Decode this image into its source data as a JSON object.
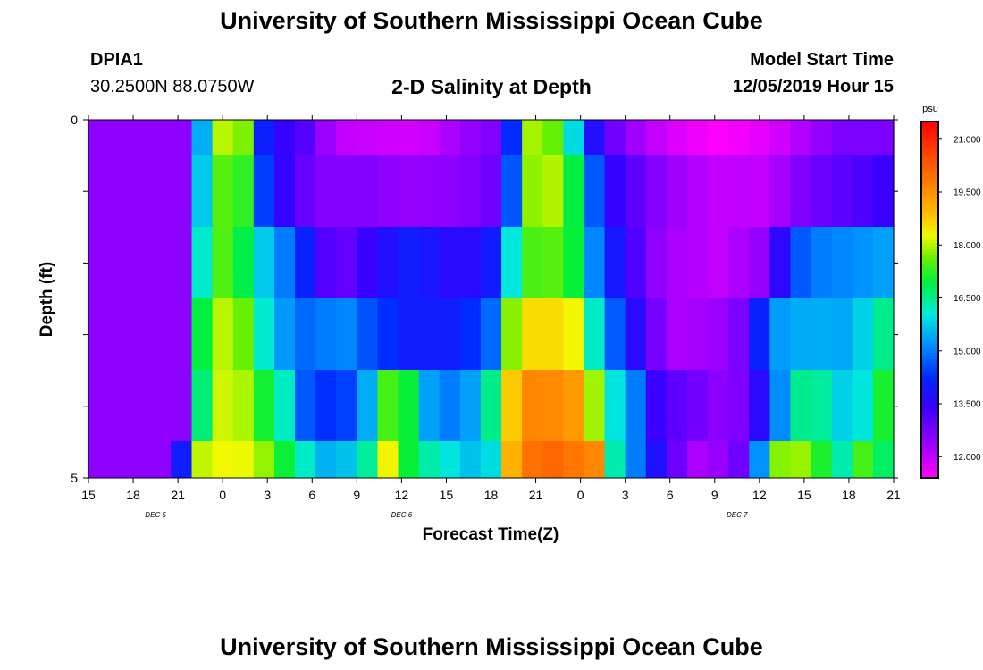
{
  "page": {
    "title": "University of Southern Mississippi Ocean Cube",
    "footer_title": "University of Southern Mississippi Ocean Cube",
    "station_id": "DPIA1",
    "location": "30.2500N 88.0750W",
    "chart_title": "2-D Salinity at Depth",
    "model_start_label": "Model Start Time",
    "model_start_value": "12/05/2019 Hour 15"
  },
  "chart_data": {
    "type": "heatmap",
    "title": "2-D Salinity at Depth",
    "xlabel": "Forecast Time(Z)",
    "ylabel": "Depth (ft)",
    "colorbar_unit": "psu",
    "x_tick_labels": [
      "15",
      "18",
      "21",
      "0",
      "3",
      "6",
      "9",
      "12",
      "15",
      "18",
      "21",
      "0",
      "3",
      "6",
      "9",
      "12",
      "15",
      "18",
      "21"
    ],
    "x_day_labels": [
      {
        "label": "DEC 5",
        "tick_index": 1.5
      },
      {
        "label": "DEC 6",
        "tick_index": 7
      },
      {
        "label": "DEC 7",
        "tick_index": 14.5
      }
    ],
    "y_tick_labels": [
      "0",
      "5"
    ],
    "y_range": [
      0,
      5
    ],
    "value_range": [
      11.4,
      21.5
    ],
    "colorbar_ticks": [
      "12.000",
      "13.500",
      "15.000",
      "16.500",
      "18.000",
      "19.500",
      "21.000"
    ],
    "colorbar_tick_values": [
      12.0,
      13.5,
      15.0,
      16.5,
      18.0,
      19.5,
      21.0
    ],
    "layers": [
      {
        "depth_range": "0-0.5 ft",
        "keyframes": [
          [
            0,
            12.5
          ],
          [
            4.8,
            12.5
          ],
          [
            5.3,
            14.5
          ],
          [
            5.9,
            17.4
          ],
          [
            6.5,
            18.0
          ],
          [
            7.6,
            17.7
          ],
          [
            8.0,
            14.5
          ],
          [
            9.0,
            13.6
          ],
          [
            10.5,
            13.1
          ],
          [
            12.0,
            12.0
          ],
          [
            14.0,
            11.9
          ],
          [
            16.0,
            11.8
          ],
          [
            17.8,
            12.3
          ],
          [
            19.9,
            12.7
          ],
          [
            20.6,
            14.5
          ],
          [
            21.2,
            17.8
          ],
          [
            22.0,
            18.1
          ],
          [
            23.1,
            17.0
          ],
          [
            24.2,
            14.0
          ],
          [
            25.2,
            13.0
          ],
          [
            26.0,
            12.5
          ],
          [
            28.0,
            11.8
          ],
          [
            30.5,
            11.4
          ],
          [
            33.0,
            11.7
          ],
          [
            35.0,
            12.3
          ],
          [
            36.5,
            12.7
          ],
          [
            38.0,
            12.7
          ],
          [
            39.0,
            12.7
          ]
        ]
      },
      {
        "depth_range": "0.5-1.5 ft",
        "keyframes": [
          [
            0,
            12.5
          ],
          [
            4.8,
            12.5
          ],
          [
            5.3,
            15.0
          ],
          [
            5.8,
            16.8
          ],
          [
            6.6,
            17.6
          ],
          [
            7.4,
            17.5
          ],
          [
            8.0,
            16.0
          ],
          [
            8.7,
            13.8
          ],
          [
            9.6,
            13.4
          ],
          [
            10.7,
            12.8
          ],
          [
            11.5,
            12.6
          ],
          [
            13.5,
            12.6
          ],
          [
            15.5,
            12.4
          ],
          [
            17.5,
            12.5
          ],
          [
            19.4,
            12.7
          ],
          [
            20.1,
            13.5
          ],
          [
            20.8,
            15.5
          ],
          [
            21.5,
            17.8
          ],
          [
            22.6,
            18.0
          ],
          [
            23.3,
            17.5
          ],
          [
            24.0,
            15.5
          ],
          [
            25.1,
            13.7
          ],
          [
            26.5,
            13.0
          ],
          [
            28.0,
            12.4
          ],
          [
            30.0,
            12.0
          ],
          [
            33.0,
            12.0
          ],
          [
            34.0,
            12.5
          ],
          [
            35.0,
            12.8
          ],
          [
            37.0,
            13.1
          ],
          [
            38.5,
            13.4
          ],
          [
            39.0,
            13.5
          ]
        ]
      },
      {
        "depth_range": "1.5-2.5 ft",
        "keyframes": [
          [
            0,
            12.5
          ],
          [
            4.8,
            12.5
          ],
          [
            5.3,
            15.5
          ],
          [
            5.9,
            17.4
          ],
          [
            6.8,
            17.5
          ],
          [
            7.4,
            17.0
          ],
          [
            7.9,
            16.4
          ],
          [
            8.7,
            15.5
          ],
          [
            9.5,
            15.0
          ],
          [
            10.6,
            14.0
          ],
          [
            11.3,
            13.2
          ],
          [
            12.2,
            12.8
          ],
          [
            13.7,
            13.5
          ],
          [
            15.5,
            14.0
          ],
          [
            16.8,
            13.8
          ],
          [
            18.0,
            13.5
          ],
          [
            19.4,
            13.8
          ],
          [
            20.2,
            15.2
          ],
          [
            21.0,
            17.4
          ],
          [
            22.5,
            17.5
          ],
          [
            23.4,
            17.2
          ],
          [
            24.2,
            15.5
          ],
          [
            25.3,
            14.0
          ],
          [
            26.2,
            13.5
          ],
          [
            27.0,
            12.6
          ],
          [
            28.5,
            12.2
          ],
          [
            30.5,
            12.0
          ],
          [
            32.5,
            12.4
          ],
          [
            33.2,
            13.0
          ],
          [
            34.0,
            14.5
          ],
          [
            35.5,
            15.0
          ],
          [
            37.5,
            15.2
          ],
          [
            39.0,
            15.4
          ]
        ]
      },
      {
        "depth_range": "2.5-3.5 ft",
        "keyframes": [
          [
            0,
            12.5
          ],
          [
            4.8,
            12.5
          ],
          [
            5.3,
            16.5
          ],
          [
            6.0,
            18.0
          ],
          [
            7.0,
            18.0
          ],
          [
            7.8,
            17.4
          ],
          [
            8.3,
            16.3
          ],
          [
            9.1,
            15.5
          ],
          [
            10.3,
            14.8
          ],
          [
            11.5,
            15.0
          ],
          [
            12.6,
            15.1
          ],
          [
            13.7,
            14.5
          ],
          [
            15.5,
            14.0
          ],
          [
            17.5,
            14.0
          ],
          [
            19.4,
            14.5
          ],
          [
            20.0,
            16.5
          ],
          [
            20.7,
            18.3
          ],
          [
            22.0,
            18.7
          ],
          [
            23.5,
            18.3
          ],
          [
            24.3,
            16.5
          ],
          [
            25.2,
            15.0
          ],
          [
            26.2,
            14.0
          ],
          [
            27.0,
            13.0
          ],
          [
            28.5,
            12.2
          ],
          [
            31.0,
            12.4
          ],
          [
            32.0,
            13.0
          ],
          [
            32.6,
            14.3
          ],
          [
            33.5,
            15.3
          ],
          [
            35.0,
            15.5
          ],
          [
            36.5,
            15.4
          ],
          [
            37.5,
            15.8
          ],
          [
            38.5,
            16.5
          ],
          [
            39.0,
            17.0
          ]
        ]
      },
      {
        "depth_range": "3.5-4.5 ft",
        "keyframes": [
          [
            0,
            12.5
          ],
          [
            4.7,
            12.5
          ],
          [
            5.2,
            15.5
          ],
          [
            5.9,
            18.1
          ],
          [
            7.3,
            18.1
          ],
          [
            8.2,
            17.4
          ],
          [
            9.0,
            16.5
          ],
          [
            9.8,
            16.0
          ],
          [
            10.7,
            14.3
          ],
          [
            12.3,
            14.3
          ],
          [
            13.2,
            15.0
          ],
          [
            14.2,
            16.5
          ],
          [
            14.8,
            18.3
          ],
          [
            15.5,
            17.0
          ],
          [
            16.0,
            15.5
          ],
          [
            17.5,
            15.0
          ],
          [
            19.0,
            15.5
          ],
          [
            20.0,
            17.5
          ],
          [
            20.8,
            19.5
          ],
          [
            22.0,
            19.7
          ],
          [
            23.8,
            19.3
          ],
          [
            24.8,
            17.3
          ],
          [
            25.6,
            15.8
          ],
          [
            26.5,
            15.0
          ],
          [
            27.5,
            13.4
          ],
          [
            28.5,
            13.0
          ],
          [
            31.0,
            12.4
          ],
          [
            32.2,
            13.0
          ],
          [
            32.8,
            14.2
          ],
          [
            33.6,
            15.3
          ],
          [
            34.4,
            16.5
          ],
          [
            35.5,
            16.4
          ],
          [
            37.0,
            15.5
          ],
          [
            38.0,
            16.5
          ],
          [
            39.0,
            17.7
          ]
        ]
      },
      {
        "depth_range": "4.5-5 ft",
        "keyframes": [
          [
            0,
            12.5
          ],
          [
            3.5,
            12.5
          ],
          [
            4.0,
            12.8
          ],
          [
            4.5,
            14.0
          ],
          [
            4.9,
            15.8
          ],
          [
            5.3,
            18.0
          ],
          [
            7.0,
            18.4
          ],
          [
            8.3,
            18.0
          ],
          [
            9.3,
            17.2
          ],
          [
            10.3,
            16.3
          ],
          [
            11.5,
            15.5
          ],
          [
            13.3,
            15.8
          ],
          [
            13.8,
            17.3
          ],
          [
            14.3,
            18.6
          ],
          [
            15.3,
            17.2
          ],
          [
            16.0,
            16.5
          ],
          [
            17.5,
            16.0
          ],
          [
            19.0,
            15.5
          ],
          [
            19.6,
            16.0
          ],
          [
            20.0,
            17.8
          ],
          [
            20.8,
            19.8
          ],
          [
            22.5,
            20.1
          ],
          [
            24.5,
            19.6
          ],
          [
            25.0,
            17.8
          ],
          [
            25.6,
            16.0
          ],
          [
            26.5,
            15.0
          ],
          [
            27.3,
            14.0
          ],
          [
            28.0,
            13.2
          ],
          [
            29.5,
            12.2
          ],
          [
            31.0,
            12.5
          ],
          [
            31.8,
            13.0
          ],
          [
            32.5,
            15.2
          ],
          [
            33.2,
            17.5
          ],
          [
            34.0,
            18.2
          ],
          [
            35.3,
            17.3
          ],
          [
            36.5,
            16.3
          ],
          [
            37.5,
            17.4
          ],
          [
            38.4,
            16.4
          ],
          [
            39.0,
            18.4
          ]
        ]
      }
    ]
  }
}
